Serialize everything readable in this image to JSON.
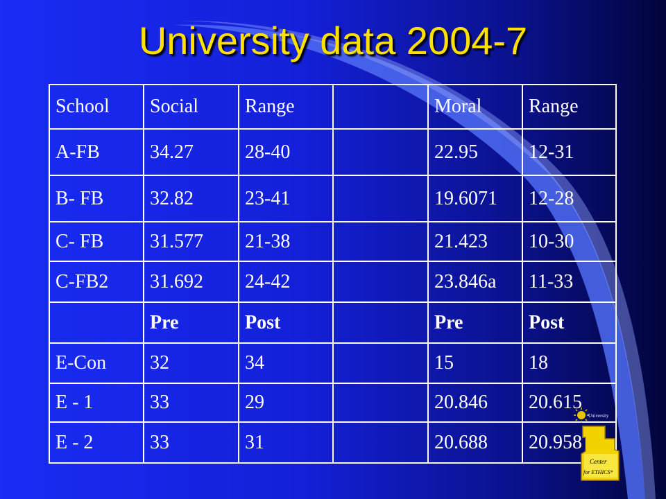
{
  "slide": {
    "title": "University data 2004-7"
  },
  "table": {
    "header": [
      "School",
      "Social",
      "Range",
      "",
      "Moral",
      "Range"
    ],
    "rows": [
      [
        "A-FB",
        "34.27",
        "28-40",
        "",
        "22.95",
        "12-31"
      ],
      [
        "B- FB",
        "32.82",
        "23-41",
        "",
        "19.6071",
        "12-28"
      ],
      [
        "C- FB",
        "31.577",
        "21-38",
        "",
        "21.423",
        "10-30"
      ],
      [
        "C-FB2",
        "31.692",
        "24-42",
        "",
        "23.846a",
        "11-33"
      ],
      [
        "",
        "Pre",
        "Post",
        "",
        "Pre",
        "Post"
      ],
      [
        "E-Con",
        "32",
        "34",
        "",
        "15",
        "18"
      ],
      [
        "E - 1",
        "33",
        "29",
        "",
        "20.846",
        "20.615"
      ],
      [
        "E - 2",
        "33",
        "31",
        "",
        "20.688",
        "20.958"
      ]
    ]
  },
  "logo": {
    "line1": "University",
    "line2": "Center",
    "line3": "for ETHICS*"
  },
  "colors": {
    "title": "#ffe000",
    "background": "#1a2cf5",
    "swoosh": "#4f6cf2"
  }
}
